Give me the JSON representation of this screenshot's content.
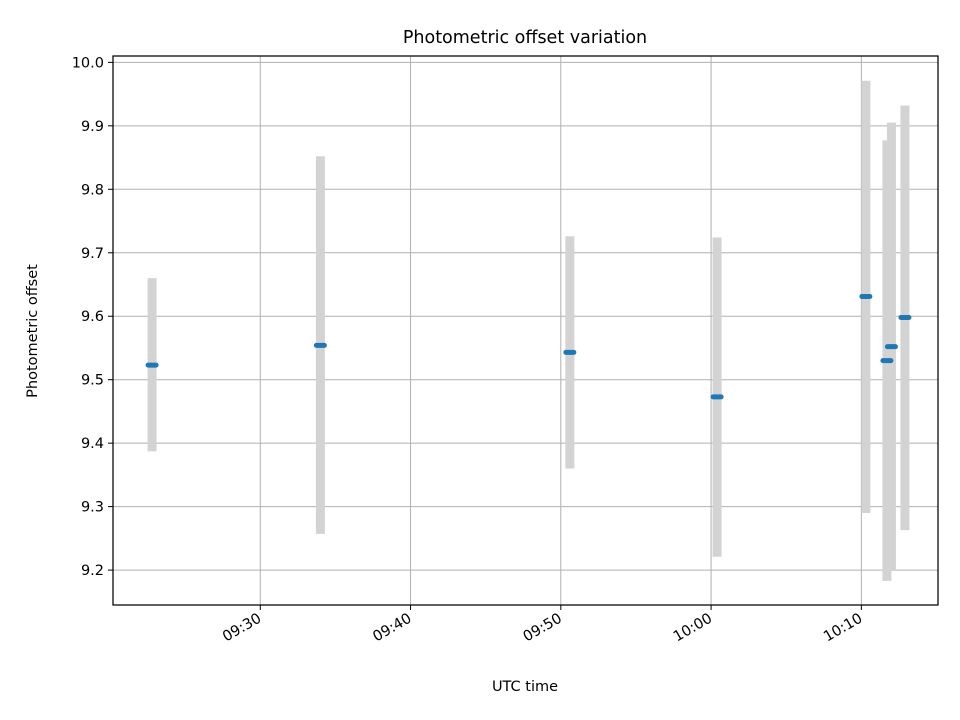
{
  "chart_data": {
    "type": "scatter",
    "title": "Photometric offset variation",
    "xlabel": "UTC time",
    "ylabel": "Photometric offset",
    "x_ticks": [
      "09:30",
      "09:40",
      "09:50",
      "10:00",
      "10:10"
    ],
    "y_ticks": [
      "9.2",
      "9.3",
      "9.4",
      "9.5",
      "9.6",
      "9.7",
      "9.8",
      "9.9",
      "10.0"
    ],
    "xlim": [
      "09:20:12",
      "10:15:06"
    ],
    "ylim": [
      9.145,
      10.01
    ],
    "grid": true,
    "errorbar_color": "#d3d3d3",
    "point_color": "#1f77b4",
    "points": [
      {
        "x": "09:22:48",
        "y": 9.523,
        "y_low": 9.387,
        "y_high": 9.66
      },
      {
        "x": "09:34:00",
        "y": 9.554,
        "y_low": 9.257,
        "y_high": 9.852
      },
      {
        "x": "09:50:36",
        "y": 9.543,
        "y_low": 9.36,
        "y_high": 9.726
      },
      {
        "x": "10:00:24",
        "y": 9.473,
        "y_low": 9.221,
        "y_high": 9.724
      },
      {
        "x": "10:10:18",
        "y": 9.631,
        "y_low": 9.29,
        "y_high": 9.971
      },
      {
        "x": "10:11:42",
        "y": 9.53,
        "y_low": 9.183,
        "y_high": 9.877
      },
      {
        "x": "10:12:00",
        "y": 9.552,
        "y_low": 9.2,
        "y_high": 9.905
      },
      {
        "x": "10:12:54",
        "y": 9.598,
        "y_low": 9.263,
        "y_high": 9.932
      }
    ]
  }
}
